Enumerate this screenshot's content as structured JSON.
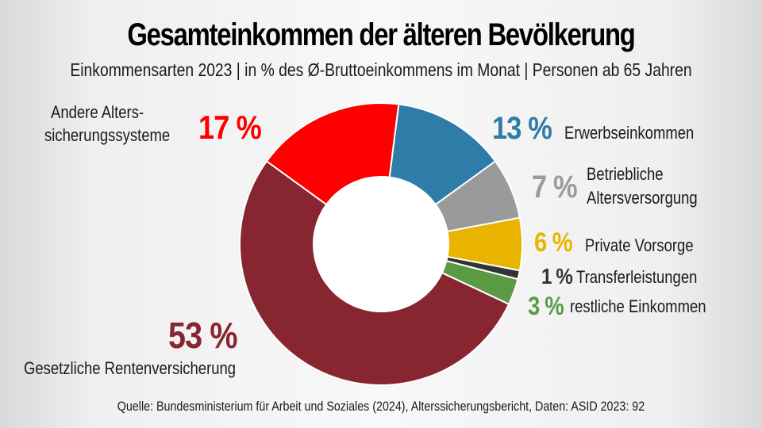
{
  "header": {
    "title": "Gesamteinkommen der älteren Bevölkerung",
    "subtitle": "Einkommensarten 2023 | in % des Ø-Bruttoeinkommens im Monat | Personen ab 65 Jahren"
  },
  "footer": {
    "source": "Quelle: Bundesministerium für Arbeit und Soziales (2024), Alterssicherungsbericht, Daten: ASID 2023: 92"
  },
  "chart_data": {
    "type": "pie",
    "variant": "donut",
    "title": "Gesamteinkommen der älteren Bevölkerung",
    "subtitle": "Einkommensarten 2023 | in % des Ø-Bruttoeinkommens im Monat | Personen ab 65 Jahren",
    "unit": "%",
    "start_angle_deg": 7.2,
    "direction": "clockwise",
    "slices": [
      {
        "key": "erwerb",
        "label": "Erwerbseinkommen",
        "value": 13,
        "value_label": "13 %",
        "color": "#2e7ca8"
      },
      {
        "key": "betrieb",
        "label_lines": [
          "Betriebliche",
          "Altersversorgung"
        ],
        "label": "Betriebliche Altersversorgung",
        "value": 7,
        "value_label": "7 %",
        "color": "#9a9a9a"
      },
      {
        "key": "privat",
        "label": "Private Vorsorge",
        "value": 6,
        "value_label": "6 %",
        "color": "#e8b400"
      },
      {
        "key": "transfer",
        "label": "Transferleistungen",
        "value": 1,
        "value_label": "1 %",
        "color": "#333333"
      },
      {
        "key": "rest",
        "label": "restliche Einkommen",
        "value": 3,
        "value_label": "3 %",
        "color": "#5a9a45"
      },
      {
        "key": "grv",
        "label": "Gesetzliche Rentenversicherung",
        "value": 53,
        "value_label": "53 %",
        "color": "#872630"
      },
      {
        "key": "andere",
        "label_lines": [
          "Andere Alters-",
          "sicherungssysteme"
        ],
        "label": "Andere Alterssicherungssysteme",
        "value": 17,
        "value_label": "17 %",
        "color": "#fe0000"
      }
    ],
    "source": "Quelle: Bundesministerium für Arbeit und Soziales (2024), Alterssicherungsbericht, Daten: ASID 2023: 92"
  }
}
